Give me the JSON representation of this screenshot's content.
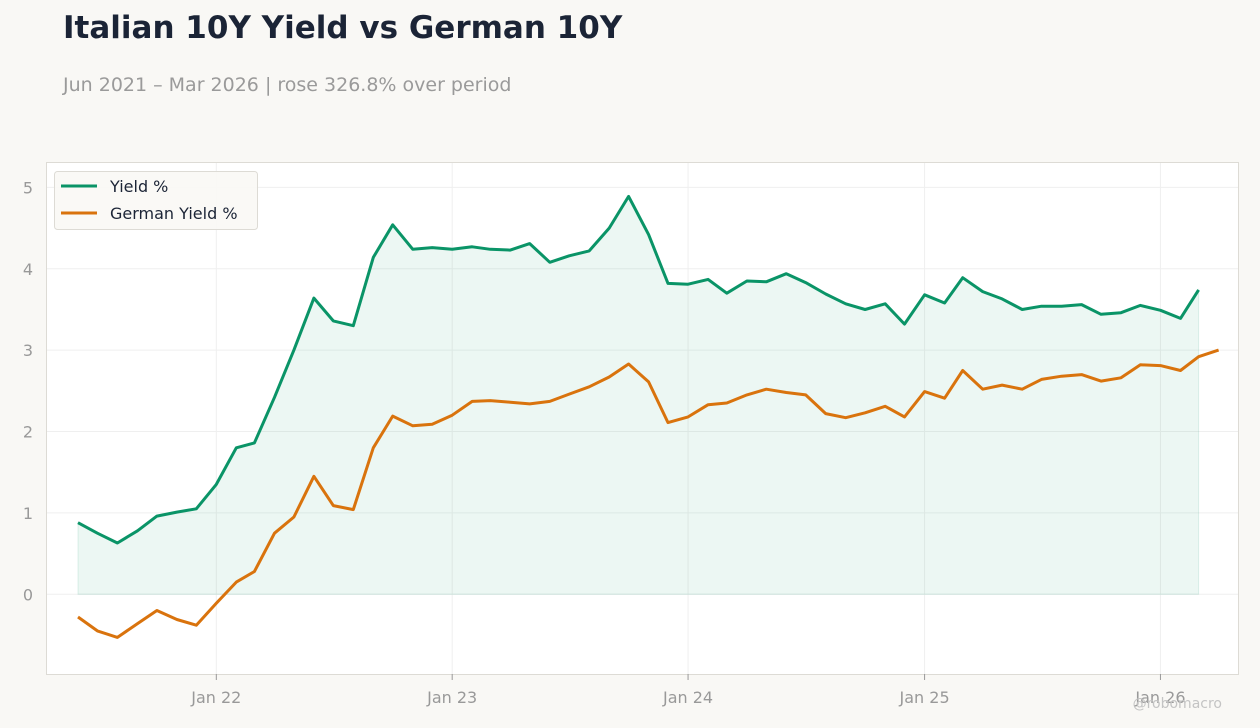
{
  "header": {
    "title": "Italian 10Y Yield vs German 10Y",
    "subtitle": "Jun 2021 – Mar 2026 | rose 326.8% over period"
  },
  "watermark": "@robomacro",
  "colors": {
    "italy": "#0a9467",
    "germany": "#d9730d",
    "fill": "#0a9467"
  },
  "chart_data": {
    "type": "line",
    "ylim": [
      -0.98,
      5.3
    ],
    "yticks": [
      0,
      1,
      2,
      3,
      4,
      5
    ],
    "xticks": [
      {
        "label": "Jan 22",
        "date": "2022-01-01"
      },
      {
        "label": "Jan 23",
        "date": "2023-01-01"
      },
      {
        "label": "Jan 24",
        "date": "2024-01-01"
      },
      {
        "label": "Jan 25",
        "date": "2025-01-01"
      },
      {
        "label": "Jan 26",
        "date": "2026-01-01"
      }
    ],
    "xlim": [
      "2021-04-14",
      "2026-05-01"
    ],
    "legend_position": "top-left",
    "grid": true,
    "series": [
      {
        "name": "Yield %",
        "fill": true,
        "points": [
          [
            "2021-06-01",
            0.88
          ],
          [
            "2021-07-01",
            0.75
          ],
          [
            "2021-08-01",
            0.63
          ],
          [
            "2021-09-01",
            0.78
          ],
          [
            "2021-10-01",
            0.96
          ],
          [
            "2021-11-01",
            1.01
          ],
          [
            "2021-12-01",
            1.05
          ],
          [
            "2022-01-01",
            1.35
          ],
          [
            "2022-02-01",
            1.8
          ],
          [
            "2022-03-01",
            1.86
          ],
          [
            "2022-04-01",
            2.42
          ],
          [
            "2022-05-01",
            3.0
          ],
          [
            "2022-06-01",
            3.64
          ],
          [
            "2022-07-01",
            3.36
          ],
          [
            "2022-08-01",
            3.3
          ],
          [
            "2022-09-01",
            4.14
          ],
          [
            "2022-10-01",
            4.54
          ],
          [
            "2022-11-01",
            4.24
          ],
          [
            "2022-12-01",
            4.26
          ],
          [
            "2023-01-01",
            4.24
          ],
          [
            "2023-02-01",
            4.27
          ],
          [
            "2023-03-01",
            4.24
          ],
          [
            "2023-04-01",
            4.23
          ],
          [
            "2023-05-01",
            4.31
          ],
          [
            "2023-06-01",
            4.08
          ],
          [
            "2023-07-01",
            4.16
          ],
          [
            "2023-08-01",
            4.22
          ],
          [
            "2023-09-01",
            4.5
          ],
          [
            "2023-10-01",
            4.89
          ],
          [
            "2023-11-01",
            4.42
          ],
          [
            "2023-12-01",
            3.82
          ],
          [
            "2024-01-01",
            3.81
          ],
          [
            "2024-02-01",
            3.87
          ],
          [
            "2024-03-01",
            3.7
          ],
          [
            "2024-04-01",
            3.85
          ],
          [
            "2024-05-01",
            3.84
          ],
          [
            "2024-06-01",
            3.94
          ],
          [
            "2024-07-01",
            3.83
          ],
          [
            "2024-08-01",
            3.69
          ],
          [
            "2024-09-01",
            3.57
          ],
          [
            "2024-10-01",
            3.5
          ],
          [
            "2024-11-01",
            3.57
          ],
          [
            "2024-12-01",
            3.32
          ],
          [
            "2025-01-01",
            3.68
          ],
          [
            "2025-02-01",
            3.58
          ],
          [
            "2025-03-01",
            3.89
          ],
          [
            "2025-04-01",
            3.72
          ],
          [
            "2025-05-01",
            3.63
          ],
          [
            "2025-06-01",
            3.5
          ],
          [
            "2025-07-01",
            3.54
          ],
          [
            "2025-08-01",
            3.54
          ],
          [
            "2025-09-01",
            3.56
          ],
          [
            "2025-10-01",
            3.44
          ],
          [
            "2025-11-01",
            3.46
          ],
          [
            "2025-12-01",
            3.55
          ],
          [
            "2026-01-01",
            3.49
          ],
          [
            "2026-02-01",
            3.39
          ],
          [
            "2026-03-01",
            3.74
          ]
        ]
      },
      {
        "name": "German Yield %",
        "fill": false,
        "points": [
          [
            "2021-06-01",
            -0.28
          ],
          [
            "2021-07-01",
            -0.45
          ],
          [
            "2021-08-01",
            -0.53
          ],
          [
            "2021-09-01",
            -0.36
          ],
          [
            "2021-10-01",
            -0.2
          ],
          [
            "2021-11-01",
            -0.31
          ],
          [
            "2021-12-01",
            -0.38
          ],
          [
            "2022-01-01",
            -0.11
          ],
          [
            "2022-02-01",
            0.15
          ],
          [
            "2022-03-01",
            0.28
          ],
          [
            "2022-04-01",
            0.75
          ],
          [
            "2022-05-01",
            0.95
          ],
          [
            "2022-06-01",
            1.45
          ],
          [
            "2022-07-01",
            1.09
          ],
          [
            "2022-08-01",
            1.04
          ],
          [
            "2022-09-01",
            1.8
          ],
          [
            "2022-10-01",
            2.19
          ],
          [
            "2022-11-01",
            2.07
          ],
          [
            "2022-12-01",
            2.09
          ],
          [
            "2023-01-01",
            2.2
          ],
          [
            "2023-02-01",
            2.37
          ],
          [
            "2023-03-01",
            2.38
          ],
          [
            "2023-04-01",
            2.36
          ],
          [
            "2023-05-01",
            2.34
          ],
          [
            "2023-06-01",
            2.37
          ],
          [
            "2023-07-01",
            2.46
          ],
          [
            "2023-08-01",
            2.55
          ],
          [
            "2023-09-01",
            2.67
          ],
          [
            "2023-10-01",
            2.83
          ],
          [
            "2023-11-01",
            2.61
          ],
          [
            "2023-12-01",
            2.11
          ],
          [
            "2024-01-01",
            2.18
          ],
          [
            "2024-02-01",
            2.33
          ],
          [
            "2024-03-01",
            2.35
          ],
          [
            "2024-04-01",
            2.45
          ],
          [
            "2024-05-01",
            2.52
          ],
          [
            "2024-06-01",
            2.48
          ],
          [
            "2024-07-01",
            2.45
          ],
          [
            "2024-08-01",
            2.22
          ],
          [
            "2024-09-01",
            2.17
          ],
          [
            "2024-10-01",
            2.23
          ],
          [
            "2024-11-01",
            2.31
          ],
          [
            "2024-12-01",
            2.18
          ],
          [
            "2025-01-01",
            2.49
          ],
          [
            "2025-02-01",
            2.41
          ],
          [
            "2025-03-01",
            2.75
          ],
          [
            "2025-04-01",
            2.52
          ],
          [
            "2025-05-01",
            2.57
          ],
          [
            "2025-06-01",
            2.52
          ],
          [
            "2025-07-01",
            2.64
          ],
          [
            "2025-08-01",
            2.68
          ],
          [
            "2025-09-01",
            2.7
          ],
          [
            "2025-10-01",
            2.62
          ],
          [
            "2025-11-01",
            2.66
          ],
          [
            "2025-12-01",
            2.82
          ],
          [
            "2026-01-01",
            2.81
          ],
          [
            "2026-02-01",
            2.75
          ],
          [
            "2026-03-01",
            2.92
          ],
          [
            "2026-04-01",
            3.0
          ]
        ]
      }
    ]
  }
}
